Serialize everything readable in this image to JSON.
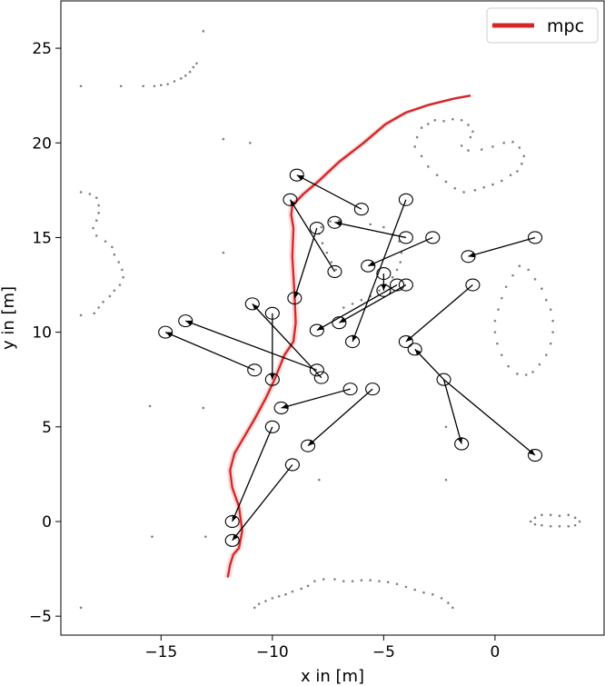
{
  "chart_data": {
    "type": "scatter",
    "title": "",
    "xlabel": "x in [m]",
    "ylabel": "y in [m]",
    "xlim": [
      -19.5,
      4.9
    ],
    "ylim": [
      -6.0,
      27.5
    ],
    "xticks": [
      -15,
      -10,
      -5,
      0
    ],
    "yticks": [
      -5,
      0,
      5,
      10,
      15,
      20,
      25
    ],
    "grid": false,
    "legend": {
      "position": "top-right",
      "entries": [
        {
          "label": "mpc",
          "color": "#d62728"
        }
      ]
    },
    "colors": {
      "mpc": "#d62728",
      "obstacles": "#808080",
      "agents": "#000000"
    },
    "series": [
      {
        "name": "mpc",
        "kind": "line",
        "x": [
          -12.0,
          -11.9,
          -11.75,
          -11.5,
          -11.35,
          -11.5,
          -11.8,
          -11.9,
          -11.7,
          -11.3,
          -10.8,
          -10.3,
          -9.9,
          -9.45,
          -9.05,
          -8.95,
          -9.0,
          -9.1,
          -9.05,
          -9.15,
          -9.1,
          -8.6,
          -7.9,
          -7.0,
          -5.9,
          -4.9,
          -4.0,
          -3.0,
          -1.8,
          -1.1
        ],
        "y": [
          -2.95,
          -2.3,
          -1.75,
          -1.4,
          -0.5,
          0.8,
          1.8,
          2.7,
          3.6,
          4.4,
          5.4,
          6.5,
          7.5,
          8.8,
          9.5,
          10.5,
          12.0,
          14.0,
          15.5,
          16.2,
          16.7,
          17.3,
          18.0,
          19.0,
          20.0,
          21.0,
          21.6,
          22.0,
          22.35,
          22.5
        ]
      },
      {
        "name": "obstacles",
        "kind": "scatter",
        "points": [
          [
            -18.6,
            23.0
          ],
          [
            -16.8,
            23.0
          ],
          [
            -15.8,
            23.0
          ],
          [
            -15.3,
            23.0
          ],
          [
            -15.0,
            23.05
          ],
          [
            -14.7,
            23.1
          ],
          [
            -14.4,
            23.25
          ],
          [
            -14.1,
            23.4
          ],
          [
            -13.9,
            23.55
          ],
          [
            -13.7,
            23.75
          ],
          [
            -13.55,
            24.0
          ],
          [
            -13.4,
            24.2
          ],
          [
            -13.1,
            25.9
          ],
          [
            -12.2,
            20.2
          ],
          [
            -11.0,
            20.0
          ],
          [
            -18.6,
            17.4
          ],
          [
            -18.2,
            17.3
          ],
          [
            -17.9,
            17.1
          ],
          [
            -17.8,
            16.7
          ],
          [
            -17.8,
            16.3
          ],
          [
            -17.9,
            15.9
          ],
          [
            -18.05,
            15.5
          ],
          [
            -17.9,
            15.1
          ],
          [
            -17.5,
            14.8
          ],
          [
            -17.2,
            14.5
          ],
          [
            -17.1,
            14.1
          ],
          [
            -16.9,
            13.7
          ],
          [
            -16.75,
            13.3
          ],
          [
            -16.7,
            12.9
          ],
          [
            -16.85,
            12.5
          ],
          [
            -17.1,
            12.2
          ],
          [
            -17.3,
            11.9
          ],
          [
            -17.6,
            11.6
          ],
          [
            -17.8,
            11.3
          ],
          [
            -18.0,
            11.0
          ],
          [
            -18.6,
            10.9
          ],
          [
            -12.2,
            14.2
          ],
          [
            -7.9,
            15.2
          ],
          [
            -7.8,
            15.55
          ],
          [
            -7.4,
            15.85
          ],
          [
            -7.0,
            15.9
          ],
          [
            -7.75,
            14.7
          ],
          [
            -7.55,
            14.2
          ],
          [
            -7.35,
            13.7
          ],
          [
            -7.15,
            13.3
          ],
          [
            -5.6,
            15.7
          ],
          [
            -5.0,
            15.55
          ],
          [
            -4.6,
            15.15
          ],
          [
            -4.3,
            14.8
          ],
          [
            -4.2,
            14.2
          ],
          [
            -4.25,
            13.7
          ],
          [
            -4.4,
            13.3
          ],
          [
            -4.6,
            12.9
          ],
          [
            -4.9,
            12.5
          ],
          [
            -5.2,
            12.2
          ],
          [
            -5.6,
            11.9
          ],
          [
            -6.0,
            11.7
          ],
          [
            -6.4,
            11.5
          ],
          [
            -6.8,
            11.3
          ],
          [
            -3.6,
            19.8
          ],
          [
            -3.5,
            20.3
          ],
          [
            -3.3,
            20.8
          ],
          [
            -3.0,
            21.0
          ],
          [
            -2.7,
            21.2
          ],
          [
            -2.3,
            21.15
          ],
          [
            -1.9,
            21.25
          ],
          [
            -1.5,
            21.2
          ],
          [
            -1.2,
            20.95
          ],
          [
            -1.0,
            20.6
          ],
          [
            -1.1,
            20.3
          ],
          [
            -1.5,
            19.85
          ],
          [
            -1.2,
            19.6
          ],
          [
            -0.6,
            19.65
          ],
          [
            -0.1,
            19.8
          ],
          [
            0.4,
            20.0
          ],
          [
            0.8,
            20.05
          ],
          [
            1.1,
            19.75
          ],
          [
            1.3,
            19.3
          ],
          [
            1.2,
            18.9
          ],
          [
            1.0,
            18.5
          ],
          [
            0.7,
            18.3
          ],
          [
            0.3,
            18.0
          ],
          [
            -0.1,
            17.8
          ],
          [
            -0.5,
            17.65
          ],
          [
            -0.9,
            17.5
          ],
          [
            -1.4,
            17.4
          ],
          [
            -1.8,
            17.6
          ],
          [
            -2.2,
            17.95
          ],
          [
            -2.6,
            18.3
          ],
          [
            -3.0,
            18.75
          ],
          [
            -3.3,
            19.3
          ],
          [
            1.1,
            13.5
          ],
          [
            1.5,
            13.3
          ],
          [
            1.8,
            12.8
          ],
          [
            2.1,
            12.3
          ],
          [
            2.3,
            11.7
          ],
          [
            2.5,
            11.2
          ],
          [
            2.6,
            10.6
          ],
          [
            2.6,
            10.0
          ],
          [
            2.5,
            9.4
          ],
          [
            2.3,
            8.8
          ],
          [
            2.0,
            8.3
          ],
          [
            1.7,
            7.9
          ],
          [
            1.4,
            7.75
          ],
          [
            1.0,
            7.8
          ],
          [
            0.6,
            8.2
          ],
          [
            0.3,
            8.8
          ],
          [
            0.1,
            9.4
          ],
          [
            0.0,
            10.0
          ],
          [
            0.0,
            10.6
          ],
          [
            0.15,
            11.2
          ],
          [
            0.3,
            11.8
          ],
          [
            0.5,
            12.4
          ],
          [
            0.8,
            13.0
          ],
          [
            -15.5,
            6.1
          ],
          [
            -13.1,
            6.0
          ],
          [
            -2.2,
            5.0
          ],
          [
            -7.9,
            2.2
          ],
          [
            -2.2,
            2.2
          ],
          [
            -15.4,
            -0.8
          ],
          [
            -13.0,
            -0.8
          ],
          [
            1.6,
            0.0
          ],
          [
            1.8,
            0.2
          ],
          [
            2.1,
            0.35
          ],
          [
            2.5,
            0.35
          ],
          [
            2.9,
            0.3
          ],
          [
            3.3,
            0.35
          ],
          [
            3.6,
            0.2
          ],
          [
            3.8,
            0.0
          ],
          [
            3.6,
            -0.2
          ],
          [
            3.3,
            -0.25
          ],
          [
            2.9,
            -0.25
          ],
          [
            2.5,
            -0.25
          ],
          [
            2.1,
            -0.2
          ],
          [
            1.8,
            -0.15
          ],
          [
            -10.8,
            -4.55
          ],
          [
            -10.6,
            -4.35
          ],
          [
            -10.3,
            -4.2
          ],
          [
            -10.0,
            -4.05
          ],
          [
            -9.7,
            -3.95
          ],
          [
            -9.4,
            -3.85
          ],
          [
            -9.1,
            -3.7
          ],
          [
            -8.7,
            -3.55
          ],
          [
            -8.4,
            -3.4
          ],
          [
            -8.1,
            -3.15
          ],
          [
            -7.7,
            -3.05
          ],
          [
            -7.2,
            -3.05
          ],
          [
            -6.8,
            -3.15
          ],
          [
            -6.4,
            -3.15
          ],
          [
            -6.0,
            -3.1
          ],
          [
            -5.6,
            -3.1
          ],
          [
            -5.2,
            -3.15
          ],
          [
            -4.8,
            -3.2
          ],
          [
            -4.4,
            -3.3
          ],
          [
            -4.0,
            -3.45
          ],
          [
            -3.6,
            -3.6
          ],
          [
            -3.2,
            -3.75
          ],
          [
            -2.8,
            -3.85
          ],
          [
            -2.4,
            -4.05
          ],
          [
            -2.1,
            -4.3
          ],
          [
            -1.9,
            -4.55
          ],
          [
            -18.6,
            -4.55
          ]
        ]
      },
      {
        "name": "agents",
        "kind": "arrows",
        "segments": [
          [
            -11.8,
            -1.0,
            -9.1,
            3.0
          ],
          [
            -11.8,
            0.0,
            -10.0,
            5.0
          ],
          [
            -8.4,
            4.0,
            -5.5,
            7.0
          ],
          [
            -9.6,
            6.0,
            -6.5,
            7.0
          ],
          [
            -10.0,
            7.5,
            -10.0,
            11.0
          ],
          [
            -14.8,
            10.0,
            -10.8,
            8.0
          ],
          [
            -13.9,
            10.6,
            -8.0,
            8.0
          ],
          [
            -10.9,
            11.5,
            -7.8,
            7.6
          ],
          [
            -9.0,
            11.8,
            -8.0,
            15.5
          ],
          [
            -9.2,
            17.0,
            -7.2,
            13.2
          ],
          [
            -8.9,
            18.3,
            -6.0,
            16.5
          ],
          [
            -7.2,
            15.8,
            -4.0,
            15.0
          ],
          [
            -5.7,
            13.5,
            -2.8,
            15.0
          ],
          [
            -8.0,
            10.1,
            -4.4,
            12.5
          ],
          [
            -7.0,
            10.5,
            -4.0,
            12.5
          ],
          [
            -6.4,
            9.5,
            -4.0,
            17.0
          ],
          [
            -5.0,
            12.2,
            -5.0,
            13.1
          ],
          [
            -3.6,
            9.1,
            -2.3,
            7.5
          ],
          [
            -1.5,
            4.1,
            -2.3,
            7.5
          ],
          [
            -1.2,
            14.0,
            1.8,
            15.0
          ],
          [
            -4.0,
            9.5,
            -1.0,
            12.5
          ],
          [
            1.8,
            3.5,
            -2.3,
            7.5
          ]
        ],
        "circles": [
          [
            -11.8,
            -1.0
          ],
          [
            -11.8,
            0.0
          ],
          [
            -9.1,
            3.0
          ],
          [
            -10.0,
            5.0
          ],
          [
            -8.4,
            4.0
          ],
          [
            -9.6,
            6.0
          ],
          [
            -6.5,
            7.0
          ],
          [
            -5.5,
            7.0
          ],
          [
            -7.8,
            7.6
          ],
          [
            -8.0,
            8.0
          ],
          [
            -10.0,
            7.5
          ],
          [
            -10.8,
            8.0
          ],
          [
            -14.8,
            10.0
          ],
          [
            -13.9,
            10.6
          ],
          [
            -10.9,
            11.5
          ],
          [
            -10.0,
            11.0
          ],
          [
            -9.0,
            11.8
          ],
          [
            -8.0,
            10.1
          ],
          [
            -7.0,
            10.5
          ],
          [
            -6.4,
            9.5
          ],
          [
            -9.2,
            17.0
          ],
          [
            -8.9,
            18.3
          ],
          [
            -8.0,
            15.5
          ],
          [
            -7.2,
            15.8
          ],
          [
            -7.2,
            13.2
          ],
          [
            -6.0,
            16.5
          ],
          [
            -5.7,
            13.5
          ],
          [
            -5.0,
            13.1
          ],
          [
            -5.0,
            12.2
          ],
          [
            -4.4,
            12.5
          ],
          [
            -4.0,
            12.5
          ],
          [
            -4.0,
            15.0
          ],
          [
            -4.0,
            17.0
          ],
          [
            -2.8,
            15.0
          ],
          [
            -4.0,
            9.5
          ],
          [
            -3.6,
            9.1
          ],
          [
            -2.3,
            7.5
          ],
          [
            -1.5,
            4.1
          ],
          [
            -1.2,
            14.0
          ],
          [
            -1.0,
            12.5
          ],
          [
            1.8,
            15.0
          ],
          [
            1.8,
            3.5
          ]
        ]
      }
    ]
  }
}
